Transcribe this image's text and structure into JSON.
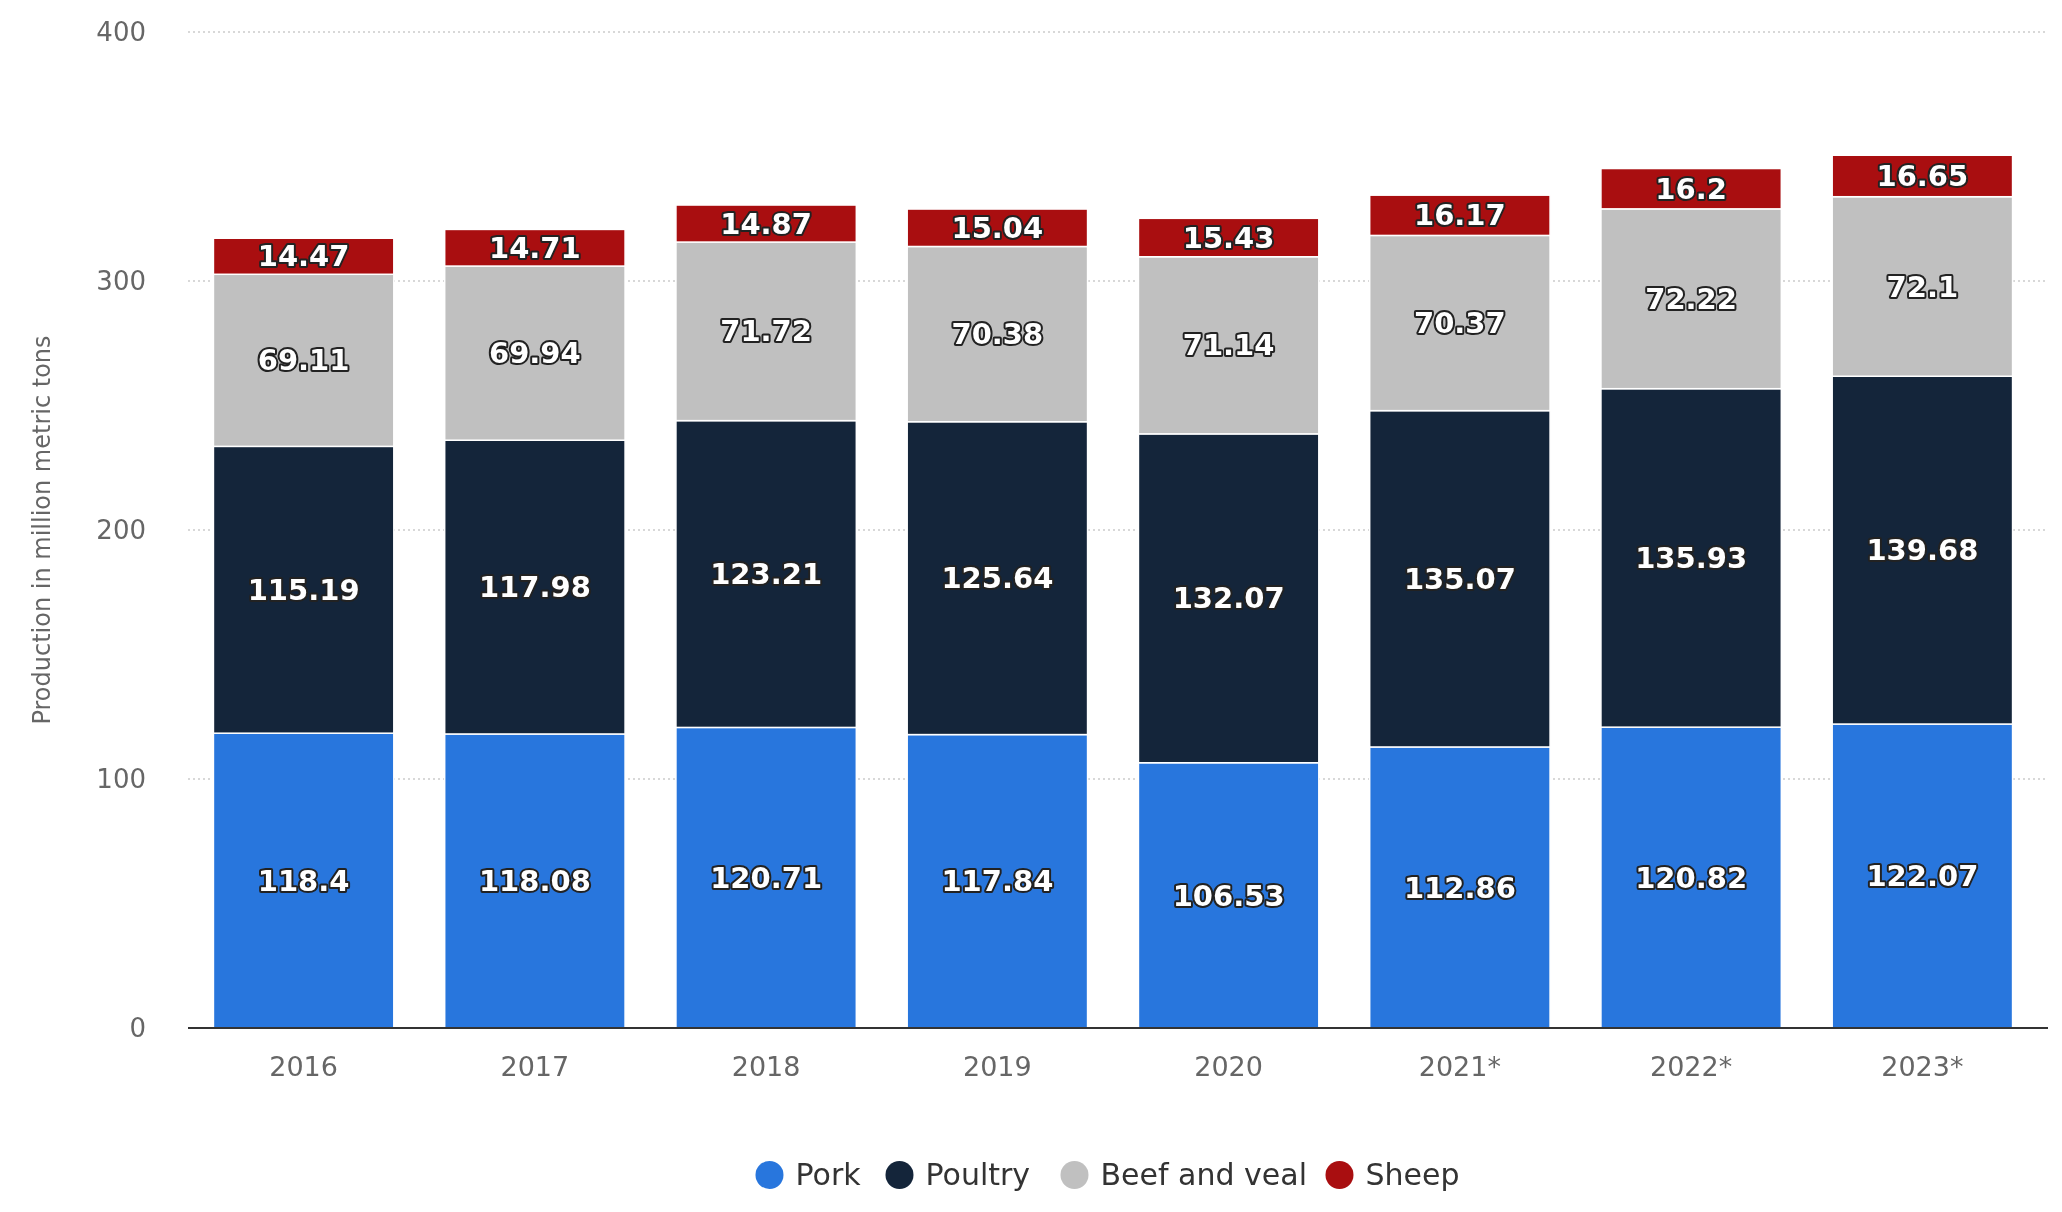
{
  "chart_data": {
    "type": "bar",
    "stacked": true,
    "ylabel": "Production in million metric tons",
    "categories": [
      "2016",
      "2017",
      "2018",
      "2019",
      "2020",
      "2021*",
      "2022*",
      "2023*"
    ],
    "series": [
      {
        "name": "Pork",
        "color": "#2876dd",
        "values": [
          118.4,
          118.08,
          120.71,
          117.84,
          106.53,
          112.86,
          120.82,
          122.07
        ]
      },
      {
        "name": "Poultry",
        "color": "#14253a",
        "values": [
          115.19,
          117.98,
          123.21,
          125.64,
          132.07,
          135.07,
          135.93,
          139.68
        ]
      },
      {
        "name": "Beef and veal",
        "color": "#c0c0c0",
        "values": [
          69.11,
          69.94,
          71.72,
          70.38,
          71.14,
          70.37,
          72.22,
          72.1
        ]
      },
      {
        "name": "Sheep",
        "color": "#a90e10",
        "values": [
          14.47,
          14.71,
          14.87,
          15.04,
          15.43,
          16.17,
          16.2,
          16.65
        ]
      }
    ],
    "ylim": [
      0,
      400
    ],
    "yticks": [
      0,
      100,
      200,
      300,
      400
    ],
    "grid": "y",
    "legend": "bottom",
    "data_labels": true
  }
}
